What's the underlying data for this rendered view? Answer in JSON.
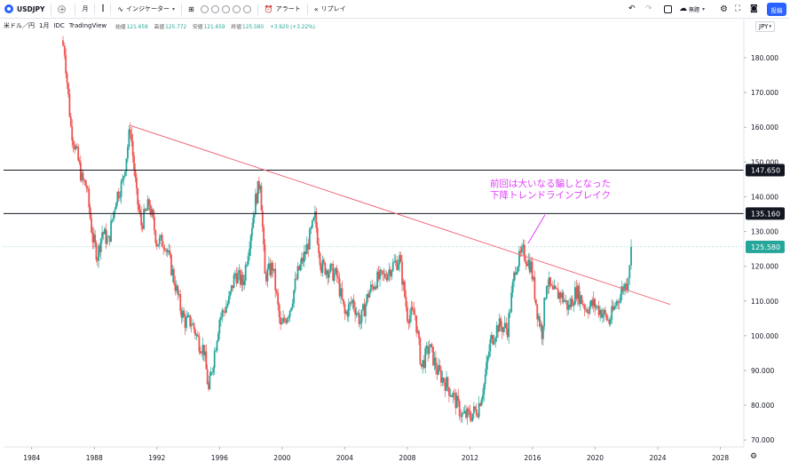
{
  "toolbar": {
    "symbol": "USDJPY",
    "add_icon": "plus-circle-icon",
    "interval": "月",
    "indicators_label": "インジケーター",
    "alert_label": "アラート",
    "replay_label": "リプレイ",
    "layout_label": "無題",
    "publish_label": "投稿"
  },
  "legend": {
    "name": "米ドル／円",
    "interval": "1月",
    "exchange": "IDC",
    "source": "TradingView",
    "open_label": "始値",
    "open": "121.659",
    "high_label": "高値",
    "high": "125.772",
    "low_label": "安値",
    "low": "121.659",
    "close_label": "終値",
    "close": "125.580",
    "change": "+3.920 (+3.22%)"
  },
  "currency": "JPY",
  "annotation": {
    "line1": "前回は大いなる騙しとなった",
    "line2": "下降トレンドラインブレイク"
  },
  "colors": {
    "up": "#26a69a",
    "down": "#ef5350",
    "trendline": "#f06b7a",
    "hline": "#131722",
    "current": "#26a69a",
    "annotation": "#e040fb"
  },
  "chart_data": {
    "type": "candlestick",
    "x_ticks": [
      "1984",
      "1988",
      "1992",
      "1996",
      "2000",
      "2004",
      "2008",
      "2012",
      "2016",
      "2020",
      "2024",
      "2028"
    ],
    "y_ticks": [
      "70.000",
      "80.000",
      "90.000",
      "100.000",
      "110.000",
      "120.000",
      "130.000",
      "140.000",
      "150.000",
      "160.000",
      "170.000",
      "180.000"
    ],
    "ylim": [
      68,
      191
    ],
    "xlim": [
      1982.2,
      2029.5
    ],
    "price_tags": [
      {
        "value": 147.65,
        "label": "147.650",
        "kind": "hline"
      },
      {
        "value": 135.16,
        "label": "135.160",
        "kind": "hline"
      },
      {
        "value": 125.58,
        "label": "125.580",
        "kind": "current"
      }
    ],
    "trendline": {
      "x1": 1990.3,
      "y1": 160.5,
      "x2": 2024.8,
      "y2": 109.0
    },
    "path": [
      [
        1985.9,
        185
      ],
      [
        1986.1,
        182
      ],
      [
        1986.5,
        160
      ],
      [
        1986.9,
        152
      ],
      [
        1987.2,
        145
      ],
      [
        1987.5,
        143
      ],
      [
        1987.9,
        128
      ],
      [
        1988.2,
        123
      ],
      [
        1988.5,
        130
      ],
      [
        1988.9,
        127
      ],
      [
        1989.4,
        140
      ],
      [
        1989.8,
        144
      ],
      [
        1990.3,
        160
      ],
      [
        1990.7,
        140
      ],
      [
        1991.0,
        132
      ],
      [
        1991.5,
        138
      ],
      [
        1992.0,
        127
      ],
      [
        1992.5,
        127
      ],
      [
        1993.0,
        118
      ],
      [
        1993.5,
        108
      ],
      [
        1993.8,
        104
      ],
      [
        1994.2,
        104
      ],
      [
        1994.7,
        98
      ],
      [
        1995.0,
        96
      ],
      [
        1995.3,
        84
      ],
      [
        1995.6,
        93
      ],
      [
        1996.0,
        105
      ],
      [
        1996.6,
        110
      ],
      [
        1997.0,
        118
      ],
      [
        1997.5,
        115
      ],
      [
        1998.0,
        130
      ],
      [
        1998.3,
        139
      ],
      [
        1998.6,
        145
      ],
      [
        1998.9,
        117
      ],
      [
        1999.4,
        120
      ],
      [
        1999.9,
        102
      ],
      [
        2000.5,
        108
      ],
      [
        2001.0,
        118
      ],
      [
        2001.5,
        124
      ],
      [
        2002.1,
        134
      ],
      [
        2002.5,
        120
      ],
      [
        2003.0,
        119
      ],
      [
        2003.5,
        117
      ],
      [
        2004.0,
        106
      ],
      [
        2004.5,
        110
      ],
      [
        2005.0,
        104
      ],
      [
        2005.5,
        112
      ],
      [
        2006.0,
        116
      ],
      [
        2006.5,
        117
      ],
      [
        2007.0,
        120
      ],
      [
        2007.5,
        122
      ],
      [
        2008.0,
        106
      ],
      [
        2008.5,
        106
      ],
      [
        2008.9,
        91
      ],
      [
        2009.4,
        97
      ],
      [
        2009.9,
        90
      ],
      [
        2010.5,
        86
      ],
      [
        2011.0,
        82
      ],
      [
        2011.5,
        77
      ],
      [
        2012.0,
        77
      ],
      [
        2012.5,
        79
      ],
      [
        2012.9,
        86
      ],
      [
        2013.3,
        98
      ],
      [
        2013.8,
        103
      ],
      [
        2014.4,
        102
      ],
      [
        2014.9,
        120
      ],
      [
        2015.4,
        124
      ],
      [
        2015.9,
        120
      ],
      [
        2016.3,
        107
      ],
      [
        2016.6,
        101
      ],
      [
        2016.9,
        116
      ],
      [
        2017.3,
        112
      ],
      [
        2017.8,
        112
      ],
      [
        2018.3,
        108
      ],
      [
        2018.8,
        113
      ],
      [
        2019.4,
        108
      ],
      [
        2019.9,
        109
      ],
      [
        2020.4,
        107
      ],
      [
        2020.9,
        104
      ],
      [
        2021.3,
        109
      ],
      [
        2021.8,
        114
      ],
      [
        2022.0,
        115
      ],
      [
        2022.2,
        121.6
      ],
      [
        2022.3,
        125.58
      ]
    ]
  }
}
